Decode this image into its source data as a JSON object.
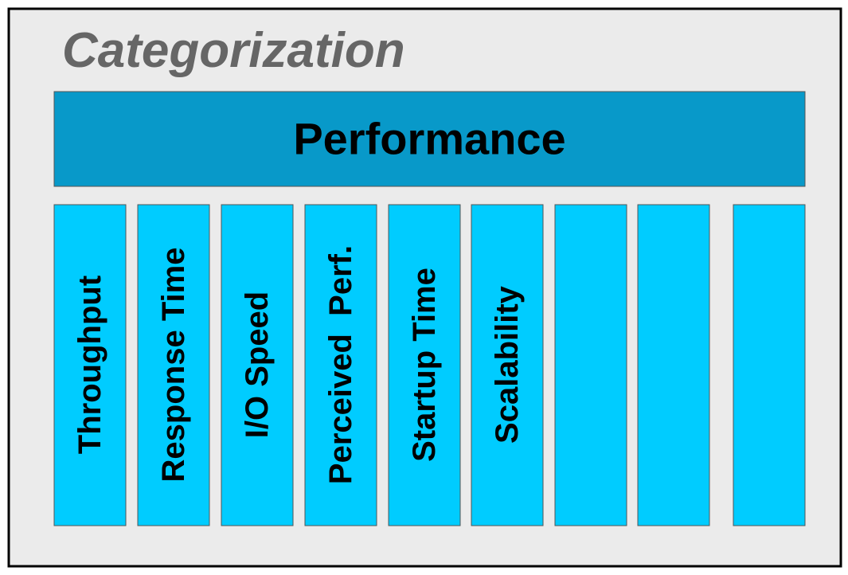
{
  "title": "Categorization",
  "header": "Performance",
  "columns": [
    "Throughput",
    "Response Time",
    "I/O Speed",
    "Perceived  Perf.",
    "Startup Time",
    "Scalability"
  ]
}
